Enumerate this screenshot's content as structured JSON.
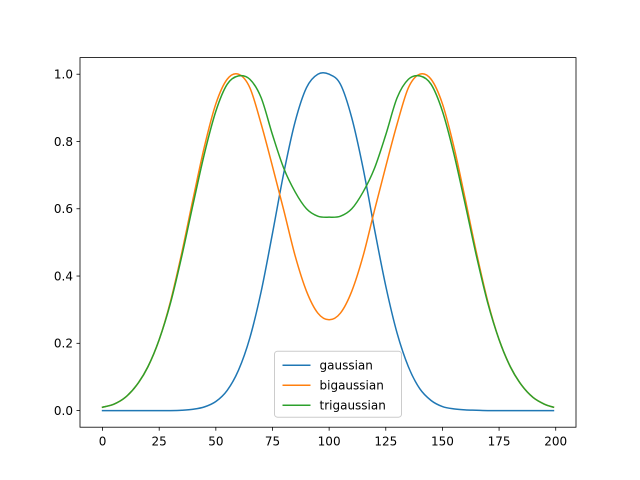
{
  "chart_data": {
    "type": "line",
    "title": "",
    "xlabel": "",
    "ylabel": "",
    "xlim": [
      -9.95,
      208.95
    ],
    "ylim": [
      -0.0494,
      1.0494
    ],
    "xticks": [
      0,
      25,
      50,
      75,
      100,
      125,
      150,
      175,
      200
    ],
    "yticks": [
      0.0,
      0.2,
      0.4,
      0.6,
      0.8,
      1.0
    ],
    "xtick_labels": [
      "0",
      "25",
      "50",
      "75",
      "100",
      "125",
      "150",
      "175",
      "200"
    ],
    "ytick_labels": [
      "0.0",
      "0.2",
      "0.4",
      "0.6",
      "0.8",
      "1.0"
    ],
    "grid": false,
    "legend_position": "lower center",
    "x": [
      0,
      5,
      10,
      15,
      20,
      25,
      30,
      35,
      40,
      45,
      50,
      55,
      60,
      65,
      70,
      75,
      80,
      85,
      90,
      95,
      100,
      105,
      110,
      115,
      120,
      125,
      130,
      135,
      140,
      145,
      150,
      155,
      160,
      165,
      170,
      175,
      180,
      185,
      190,
      195,
      199
    ],
    "series": [
      {
        "name": "gaussian",
        "color": "#1f77b4",
        "values": [
          0.0,
          0.0,
          0.0,
          0.0,
          0.0,
          0.0,
          0.0,
          0.001,
          0.004,
          0.011,
          0.027,
          0.06,
          0.12,
          0.216,
          0.354,
          0.527,
          0.707,
          0.859,
          0.96,
          1.0,
          1.0,
          0.97,
          0.87,
          0.72,
          0.54,
          0.37,
          0.23,
          0.13,
          0.065,
          0.03,
          0.012,
          0.005,
          0.002,
          0.001,
          0.0,
          0.0,
          0.0,
          0.0,
          0.0,
          0.0,
          0.0
        ]
      },
      {
        "name": "bigaussian",
        "color": "#ff7f0e",
        "values": [
          0.01,
          0.019,
          0.039,
          0.075,
          0.13,
          0.211,
          0.325,
          0.47,
          0.631,
          0.786,
          0.912,
          0.985,
          1.0,
          0.96,
          0.852,
          0.726,
          0.595,
          0.46,
          0.355,
          0.29,
          0.27,
          0.29,
          0.355,
          0.46,
          0.595,
          0.726,
          0.852,
          0.96,
          1.0,
          0.985,
          0.912,
          0.786,
          0.631,
          0.47,
          0.325,
          0.211,
          0.13,
          0.075,
          0.039,
          0.019,
          0.01
        ]
      },
      {
        "name": "trigaussian",
        "color": "#2ca02c",
        "values": [
          0.01,
          0.019,
          0.039,
          0.075,
          0.13,
          0.211,
          0.32,
          0.46,
          0.615,
          0.765,
          0.89,
          0.97,
          0.995,
          0.985,
          0.93,
          0.82,
          0.72,
          0.65,
          0.6,
          0.578,
          0.575,
          0.578,
          0.6,
          0.65,
          0.72,
          0.82,
          0.93,
          0.985,
          0.995,
          0.97,
          0.89,
          0.765,
          0.615,
          0.46,
          0.32,
          0.211,
          0.13,
          0.075,
          0.039,
          0.019,
          0.01
        ]
      }
    ]
  }
}
